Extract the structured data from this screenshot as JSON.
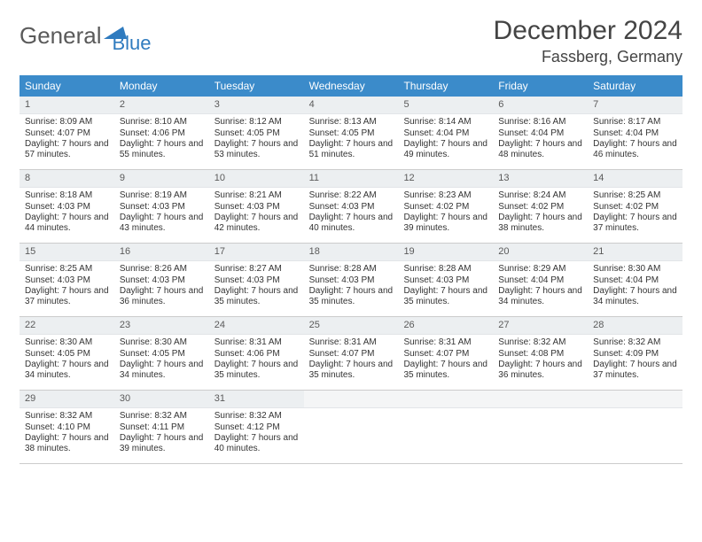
{
  "logo": {
    "word1": "General",
    "word2": "Blue"
  },
  "title": "December 2024",
  "location": "Fassberg, Germany",
  "colors": {
    "header_bg": "#3b8bca",
    "header_fg": "#ffffff",
    "daynum_bg": "#eceff1",
    "border": "#cccccc",
    "logo_gray": "#5a5a5a",
    "logo_blue": "#2f7bbf"
  },
  "layout": {
    "columns": 7,
    "rows": 5,
    "first_day_index": 0,
    "days_in_month": 31
  },
  "weekdays": [
    "Sunday",
    "Monday",
    "Tuesday",
    "Wednesday",
    "Thursday",
    "Friday",
    "Saturday"
  ],
  "days": [
    {
      "n": 1,
      "sunrise": "8:09 AM",
      "sunset": "4:07 PM",
      "daylight": "7 hours and 57 minutes."
    },
    {
      "n": 2,
      "sunrise": "8:10 AM",
      "sunset": "4:06 PM",
      "daylight": "7 hours and 55 minutes."
    },
    {
      "n": 3,
      "sunrise": "8:12 AM",
      "sunset": "4:05 PM",
      "daylight": "7 hours and 53 minutes."
    },
    {
      "n": 4,
      "sunrise": "8:13 AM",
      "sunset": "4:05 PM",
      "daylight": "7 hours and 51 minutes."
    },
    {
      "n": 5,
      "sunrise": "8:14 AM",
      "sunset": "4:04 PM",
      "daylight": "7 hours and 49 minutes."
    },
    {
      "n": 6,
      "sunrise": "8:16 AM",
      "sunset": "4:04 PM",
      "daylight": "7 hours and 48 minutes."
    },
    {
      "n": 7,
      "sunrise": "8:17 AM",
      "sunset": "4:04 PM",
      "daylight": "7 hours and 46 minutes."
    },
    {
      "n": 8,
      "sunrise": "8:18 AM",
      "sunset": "4:03 PM",
      "daylight": "7 hours and 44 minutes."
    },
    {
      "n": 9,
      "sunrise": "8:19 AM",
      "sunset": "4:03 PM",
      "daylight": "7 hours and 43 minutes."
    },
    {
      "n": 10,
      "sunrise": "8:21 AM",
      "sunset": "4:03 PM",
      "daylight": "7 hours and 42 minutes."
    },
    {
      "n": 11,
      "sunrise": "8:22 AM",
      "sunset": "4:03 PM",
      "daylight": "7 hours and 40 minutes."
    },
    {
      "n": 12,
      "sunrise": "8:23 AM",
      "sunset": "4:02 PM",
      "daylight": "7 hours and 39 minutes."
    },
    {
      "n": 13,
      "sunrise": "8:24 AM",
      "sunset": "4:02 PM",
      "daylight": "7 hours and 38 minutes."
    },
    {
      "n": 14,
      "sunrise": "8:25 AM",
      "sunset": "4:02 PM",
      "daylight": "7 hours and 37 minutes."
    },
    {
      "n": 15,
      "sunrise": "8:25 AM",
      "sunset": "4:03 PM",
      "daylight": "7 hours and 37 minutes."
    },
    {
      "n": 16,
      "sunrise": "8:26 AM",
      "sunset": "4:03 PM",
      "daylight": "7 hours and 36 minutes."
    },
    {
      "n": 17,
      "sunrise": "8:27 AM",
      "sunset": "4:03 PM",
      "daylight": "7 hours and 35 minutes."
    },
    {
      "n": 18,
      "sunrise": "8:28 AM",
      "sunset": "4:03 PM",
      "daylight": "7 hours and 35 minutes."
    },
    {
      "n": 19,
      "sunrise": "8:28 AM",
      "sunset": "4:03 PM",
      "daylight": "7 hours and 35 minutes."
    },
    {
      "n": 20,
      "sunrise": "8:29 AM",
      "sunset": "4:04 PM",
      "daylight": "7 hours and 34 minutes."
    },
    {
      "n": 21,
      "sunrise": "8:30 AM",
      "sunset": "4:04 PM",
      "daylight": "7 hours and 34 minutes."
    },
    {
      "n": 22,
      "sunrise": "8:30 AM",
      "sunset": "4:05 PM",
      "daylight": "7 hours and 34 minutes."
    },
    {
      "n": 23,
      "sunrise": "8:30 AM",
      "sunset": "4:05 PM",
      "daylight": "7 hours and 34 minutes."
    },
    {
      "n": 24,
      "sunrise": "8:31 AM",
      "sunset": "4:06 PM",
      "daylight": "7 hours and 35 minutes."
    },
    {
      "n": 25,
      "sunrise": "8:31 AM",
      "sunset": "4:07 PM",
      "daylight": "7 hours and 35 minutes."
    },
    {
      "n": 26,
      "sunrise": "8:31 AM",
      "sunset": "4:07 PM",
      "daylight": "7 hours and 35 minutes."
    },
    {
      "n": 27,
      "sunrise": "8:32 AM",
      "sunset": "4:08 PM",
      "daylight": "7 hours and 36 minutes."
    },
    {
      "n": 28,
      "sunrise": "8:32 AM",
      "sunset": "4:09 PM",
      "daylight": "7 hours and 37 minutes."
    },
    {
      "n": 29,
      "sunrise": "8:32 AM",
      "sunset": "4:10 PM",
      "daylight": "7 hours and 38 minutes."
    },
    {
      "n": 30,
      "sunrise": "8:32 AM",
      "sunset": "4:11 PM",
      "daylight": "7 hours and 39 minutes."
    },
    {
      "n": 31,
      "sunrise": "8:32 AM",
      "sunset": "4:12 PM",
      "daylight": "7 hours and 40 minutes."
    }
  ],
  "labels": {
    "sunrise": "Sunrise: ",
    "sunset": "Sunset: ",
    "daylight": "Daylight: "
  }
}
